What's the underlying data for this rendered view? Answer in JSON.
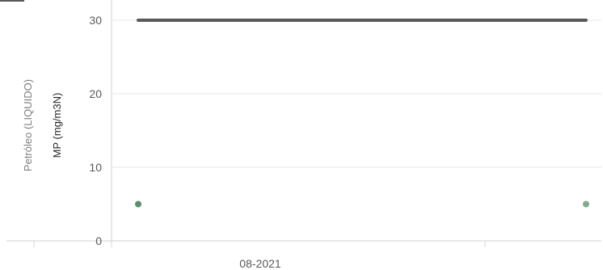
{
  "chart_data": {
    "type": "line",
    "title": "",
    "category_group_label": "Petróleo (LIQUIDO)",
    "ylabel": "MP (mg/m3N)",
    "xlabel": "",
    "categories": [
      "08-2021"
    ],
    "ylim": [
      0,
      30
    ],
    "yticks": [
      0,
      10,
      20,
      30
    ],
    "grid": true,
    "legend": "none",
    "series": [
      {
        "kind": "line",
        "color": "#595959",
        "points": [
          {
            "x": "08-2021",
            "y": 30
          },
          {
            "x": "08-2021",
            "y": 30
          }
        ]
      },
      {
        "kind": "scatter",
        "color": "#5b8f6e",
        "points": [
          {
            "x": "08-2021",
            "y": 5
          },
          {
            "x": "08-2021",
            "y": 5
          }
        ]
      }
    ]
  }
}
